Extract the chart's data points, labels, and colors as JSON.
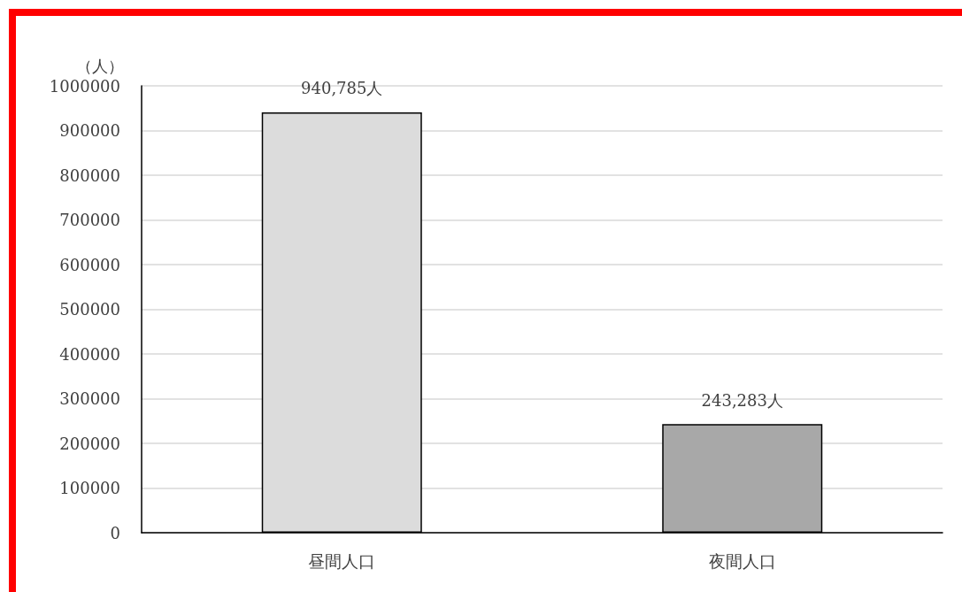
{
  "chart_data": {
    "type": "bar",
    "ylabel": "（人）",
    "categories": [
      "昼間人口",
      "夜間人口"
    ],
    "values": [
      940785,
      243283
    ],
    "value_labels": [
      "940,785人",
      "243,283人"
    ],
    "colors": [
      "#dcdcdc",
      "#a8a8a8"
    ],
    "ylim": [
      0,
      1000000
    ],
    "yticks": [
      0,
      100000,
      200000,
      300000,
      400000,
      500000,
      600000,
      700000,
      800000,
      900000,
      1000000
    ],
    "grid": "y"
  }
}
